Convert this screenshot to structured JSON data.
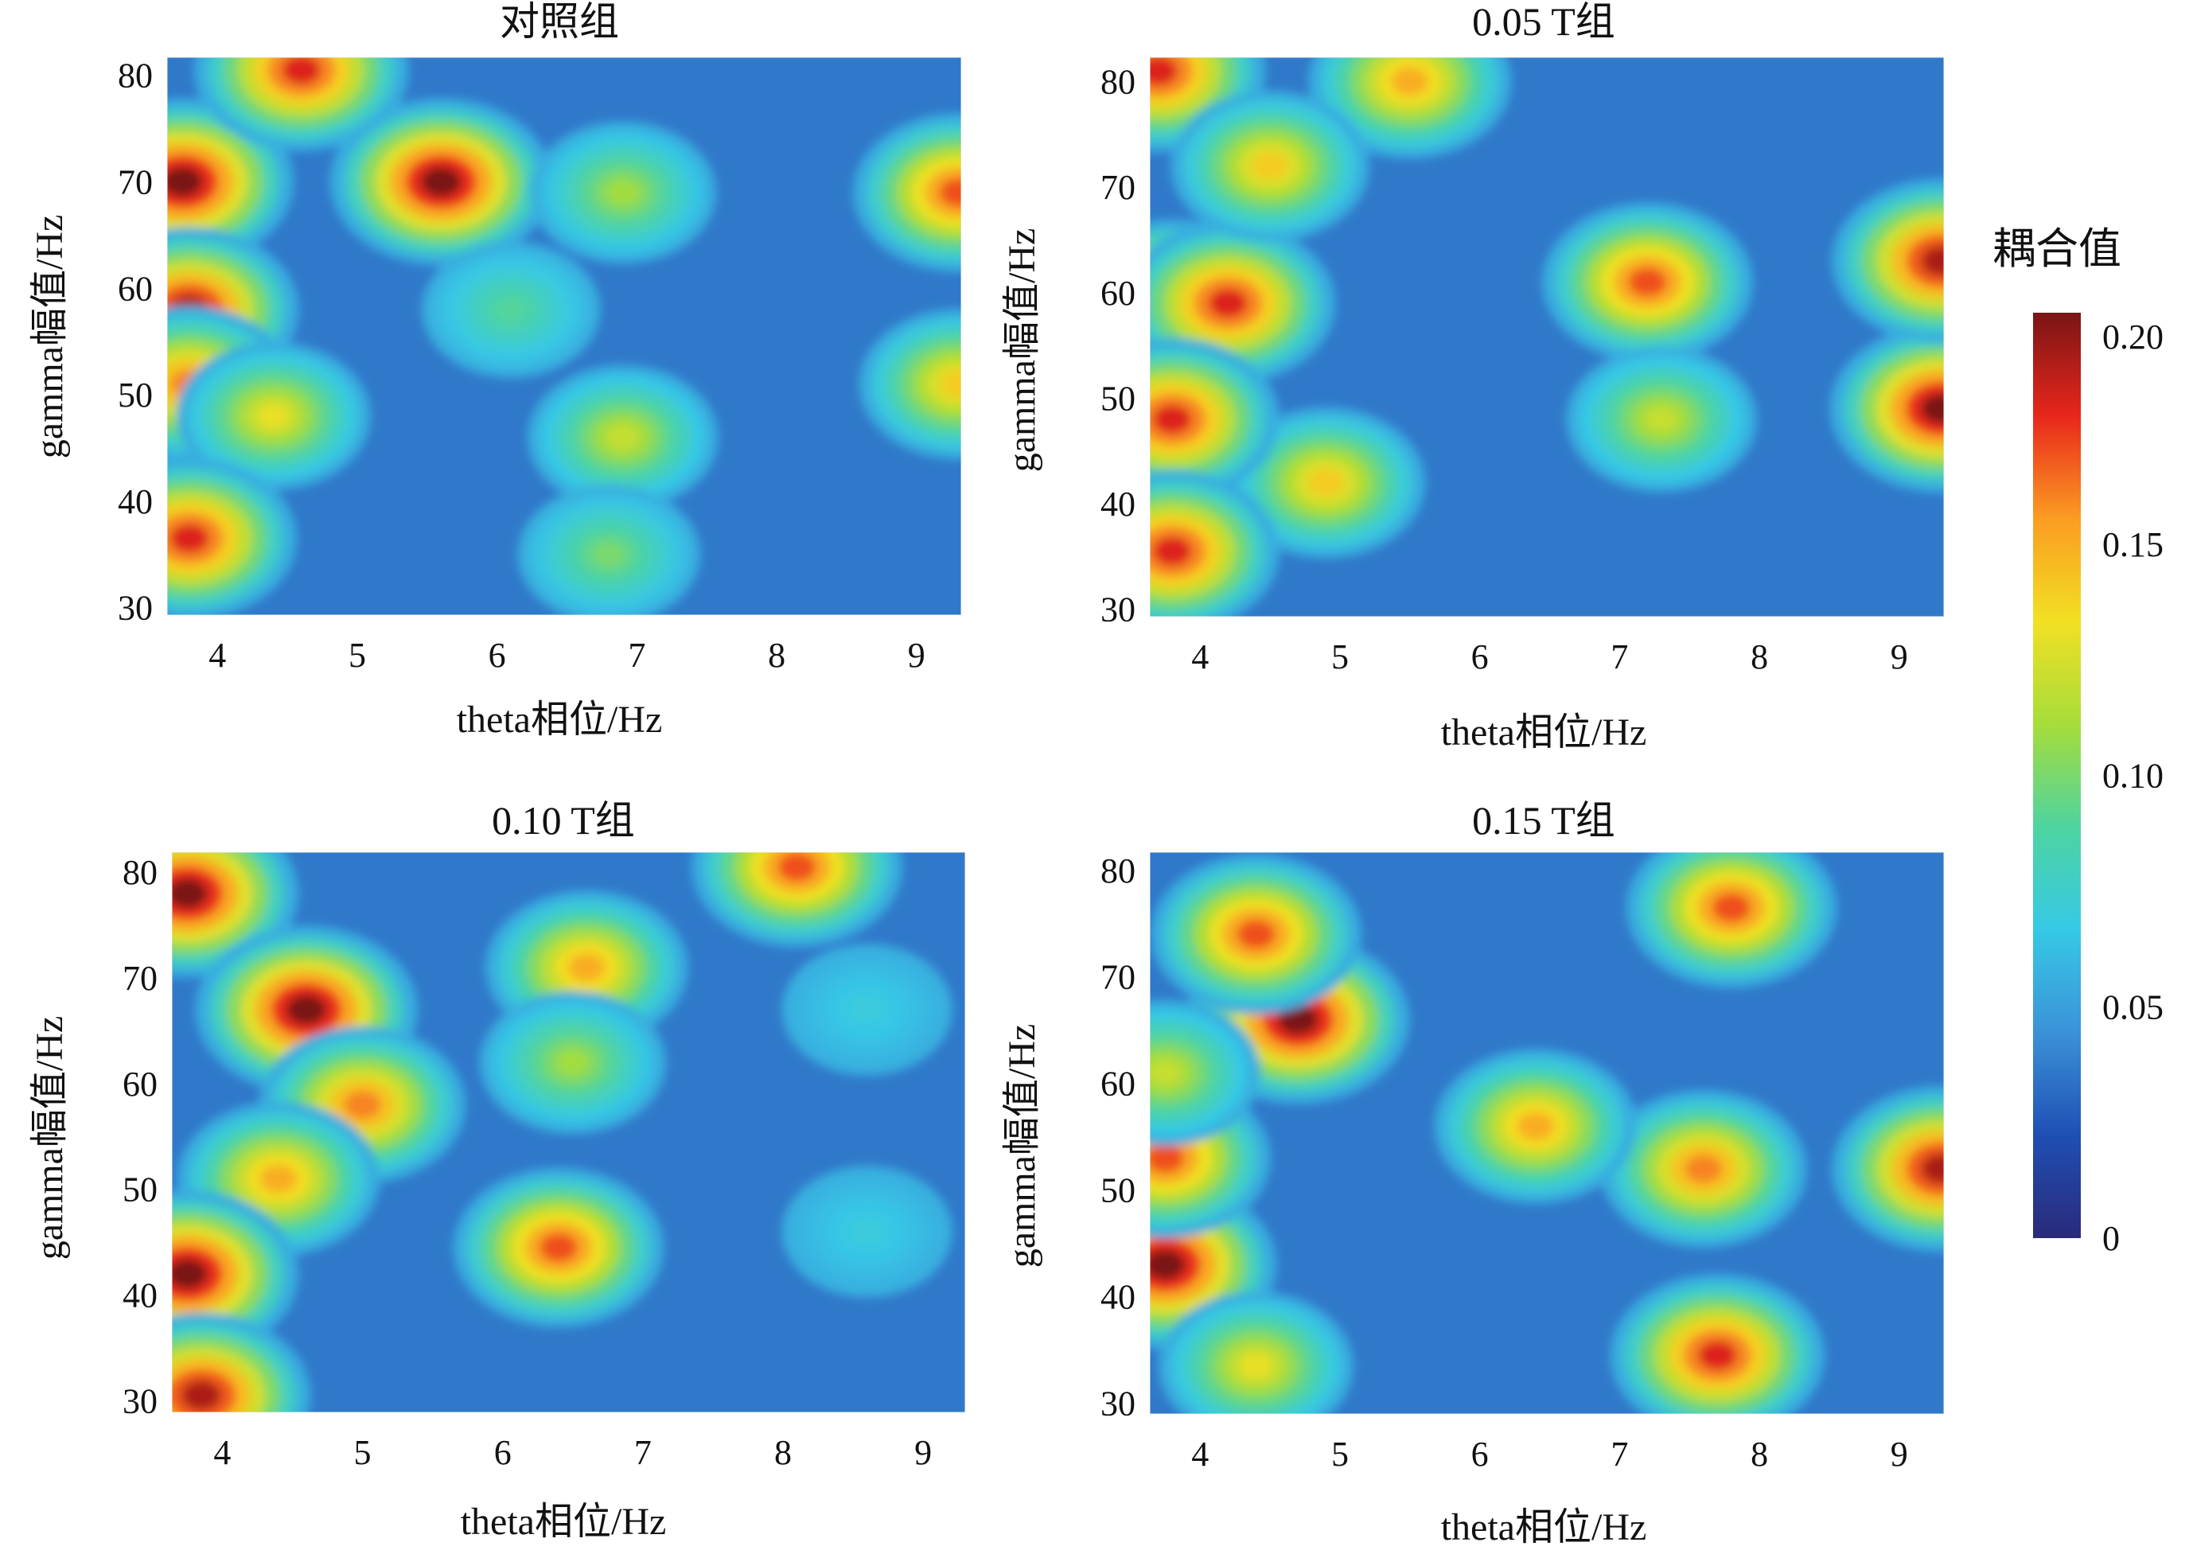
{
  "colormap": [
    "#2a2a7a",
    "#1f4fb4",
    "#3b92d8",
    "#36c9e6",
    "#4ed4a0",
    "#a6dd3a",
    "#f2e023",
    "#fb9c22",
    "#e8261b",
    "#7a1515"
  ],
  "chart_data": [
    {
      "type": "heatmap",
      "title": "对照组",
      "xlabel": "theta相位/Hz",
      "ylabel": "gamma幅值/Hz",
      "x_ticks": [
        4,
        5,
        6,
        7,
        8,
        9
      ],
      "y_ticks": [
        30,
        40,
        50,
        60,
        70,
        80
      ],
      "xlim": [
        3.64,
        9.32
      ],
      "ylim": [
        29.3,
        81.7
      ],
      "blobs": [
        {
          "x": 3.75,
          "y": 70,
          "value": 0.2
        },
        {
          "x": 3.8,
          "y": 58,
          "value": 0.19
        },
        {
          "x": 3.8,
          "y": 51,
          "value": 0.16
        },
        {
          "x": 4.6,
          "y": 80.5,
          "value": 0.18
        },
        {
          "x": 5.6,
          "y": 70,
          "value": 0.2
        },
        {
          "x": 6.9,
          "y": 69,
          "value": 0.11
        },
        {
          "x": 4.4,
          "y": 48,
          "value": 0.13
        },
        {
          "x": 6.9,
          "y": 46,
          "value": 0.12
        },
        {
          "x": 6.1,
          "y": 58,
          "value": 0.09
        },
        {
          "x": 3.8,
          "y": 36.5,
          "value": 0.18
        },
        {
          "x": 6.8,
          "y": 35,
          "value": 0.1
        },
        {
          "x": 9.3,
          "y": 69,
          "value": 0.17
        },
        {
          "x": 9.3,
          "y": 51,
          "value": 0.14
        }
      ],
      "colorbar": {
        "title": "耦合值",
        "ticks": [
          "0.20",
          "0.15",
          "0.10",
          "0.05",
          "0"
        ],
        "range": [
          0,
          0.2
        ]
      }
    },
    {
      "type": "heatmap",
      "title": "0.05 T组",
      "xlabel": "theta相位/Hz",
      "ylabel": "gamma幅值/Hz",
      "x_ticks": [
        4,
        5,
        6,
        7,
        8,
        9
      ],
      "y_ticks": [
        30,
        40,
        50,
        60,
        70,
        80
      ],
      "xlim": [
        3.64,
        9.32
      ],
      "ylim": [
        29.3,
        82.3
      ],
      "blobs": [
        {
          "x": 3.8,
          "y": 59,
          "value": 0.2
        },
        {
          "x": 4.2,
          "y": 59,
          "value": 0.18
        },
        {
          "x": 3.7,
          "y": 81,
          "value": 0.18
        },
        {
          "x": 5.5,
          "y": 80,
          "value": 0.15
        },
        {
          "x": 4.5,
          "y": 72,
          "value": 0.14
        },
        {
          "x": 7.2,
          "y": 61,
          "value": 0.17
        },
        {
          "x": 7.3,
          "y": 48,
          "value": 0.12
        },
        {
          "x": 4.9,
          "y": 42,
          "value": 0.14
        },
        {
          "x": 3.8,
          "y": 48,
          "value": 0.18
        },
        {
          "x": 3.8,
          "y": 35.5,
          "value": 0.18
        },
        {
          "x": 9.3,
          "y": 49,
          "value": 0.2
        },
        {
          "x": 9.3,
          "y": 63,
          "value": 0.19
        }
      ],
      "colorbar": {
        "title": "耦合值",
        "ticks": [
          "0.20",
          "0.15",
          "0.10",
          "0.05",
          "0"
        ],
        "range": [
          0,
          0.2
        ]
      }
    },
    {
      "type": "heatmap",
      "title": "0.10 T组",
      "xlabel": "theta相位/Hz",
      "ylabel": "gamma幅值/Hz",
      "x_ticks": [
        4,
        5,
        6,
        7,
        8,
        9
      ],
      "y_ticks": [
        30,
        40,
        50,
        60,
        70,
        80
      ],
      "xlim": [
        3.64,
        9.3
      ],
      "ylim": [
        28.9,
        81.9
      ],
      "blobs": [
        {
          "x": 3.75,
          "y": 78,
          "value": 0.2
        },
        {
          "x": 4.6,
          "y": 67,
          "value": 0.2
        },
        {
          "x": 5.0,
          "y": 58,
          "value": 0.16
        },
        {
          "x": 4.4,
          "y": 51,
          "value": 0.15
        },
        {
          "x": 3.75,
          "y": 42,
          "value": 0.2
        },
        {
          "x": 3.85,
          "y": 30.5,
          "value": 0.19
        },
        {
          "x": 6.4,
          "y": 44.5,
          "value": 0.17
        },
        {
          "x": 6.6,
          "y": 71,
          "value": 0.15
        },
        {
          "x": 6.5,
          "y": 62,
          "value": 0.11
        },
        {
          "x": 8.1,
          "y": 80.5,
          "value": 0.17
        },
        {
          "x": 8.6,
          "y": 67,
          "value": 0.07
        },
        {
          "x": 8.6,
          "y": 46,
          "value": 0.07
        }
      ],
      "colorbar": {
        "title": "耦合值",
        "ticks": [
          "0.20",
          "0.15",
          "0.10",
          "0.05",
          "0"
        ],
        "range": [
          0,
          0.2
        ]
      }
    },
    {
      "type": "heatmap",
      "title": "0.15 T组",
      "xlabel": "theta相位/Hz",
      "ylabel": "gamma幅值/Hz",
      "x_ticks": [
        4,
        5,
        6,
        7,
        8,
        9
      ],
      "y_ticks": [
        30,
        40,
        50,
        60,
        70,
        80
      ],
      "xlim": [
        3.64,
        9.32
      ],
      "ylim": [
        29,
        81.7
      ],
      "blobs": [
        {
          "x": 4.7,
          "y": 66,
          "value": 0.2
        },
        {
          "x": 4.4,
          "y": 74,
          "value": 0.17
        },
        {
          "x": 3.75,
          "y": 43,
          "value": 0.2
        },
        {
          "x": 3.75,
          "y": 53,
          "value": 0.17
        },
        {
          "x": 7.8,
          "y": 76.5,
          "value": 0.17
        },
        {
          "x": 7.6,
          "y": 52,
          "value": 0.16
        },
        {
          "x": 9.3,
          "y": 52,
          "value": 0.19
        },
        {
          "x": 6.4,
          "y": 56,
          "value": 0.15
        },
        {
          "x": 7.7,
          "y": 34.5,
          "value": 0.18
        },
        {
          "x": 4.4,
          "y": 33.5,
          "value": 0.13
        },
        {
          "x": 3.75,
          "y": 61,
          "value": 0.12
        }
      ],
      "colorbar": {
        "title": "耦合值",
        "ticks": [
          "0.20",
          "0.15",
          "0.10",
          "0.05",
          "0"
        ],
        "range": [
          0,
          0.2
        ]
      }
    }
  ]
}
